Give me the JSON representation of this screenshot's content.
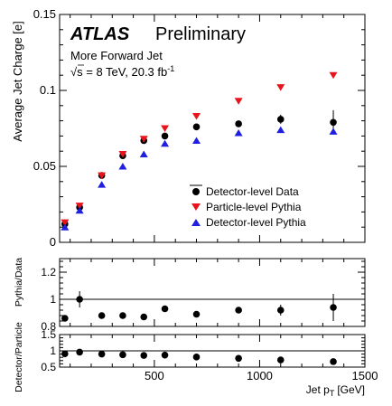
{
  "chart_data": [
    {
      "type": "scatter",
      "experiment": "ATLAS",
      "status": "Preliminary",
      "subtitle": "More Forward Jet",
      "energy_label": "√s = 8 TeV, 20.3 fb",
      "lumi_exp": "-1",
      "ylabel": "Average Jet Charge [e]",
      "xlim": [
        50,
        1500
      ],
      "ylim": [
        0,
        0.15
      ],
      "yticks": [
        0,
        0.05,
        0.1,
        0.15
      ],
      "ytick_labels": [
        "0",
        "0.05",
        "0.1",
        "0.15"
      ],
      "x": [
        75,
        145,
        250,
        350,
        450,
        550,
        700,
        900,
        1100,
        1350
      ],
      "series": [
        {
          "name": "Detector-level Data",
          "marker": "circle",
          "color": "#000000",
          "values": [
            0.012,
            0.023,
            0.044,
            0.057,
            0.067,
            0.07,
            0.076,
            0.078,
            0.081,
            0.079
          ],
          "errors": [
            0.003,
            0.002,
            0.002,
            0.002,
            0.002,
            0.002,
            0.002,
            0.002,
            0.003,
            0.008
          ]
        },
        {
          "name": "Particle-level Pythia",
          "marker": "triangle-down",
          "color": "#e8141c",
          "values": [
            0.013,
            0.024,
            0.044,
            0.058,
            0.068,
            0.075,
            0.083,
            0.093,
            0.102,
            0.11
          ]
        },
        {
          "name": "Detector-level Pythia",
          "marker": "triangle-up",
          "color": "#1f1fe0",
          "values": [
            0.01,
            0.021,
            0.038,
            0.05,
            0.058,
            0.065,
            0.067,
            0.072,
            0.074,
            0.073
          ]
        }
      ],
      "legend_position": "bottom-right"
    },
    {
      "type": "scatter",
      "ylabel": "Pythia/Data",
      "xlim": [
        50,
        1500
      ],
      "ylim": [
        0.8,
        1.3
      ],
      "yticks": [
        0.8,
        1.0,
        1.2
      ],
      "ytick_labels": [
        "0.8",
        "1",
        "1.2"
      ],
      "reference_line": 1,
      "x": [
        75,
        145,
        250,
        350,
        450,
        550,
        700,
        900,
        1100,
        1350
      ],
      "values": [
        0.86,
        1.0,
        0.88,
        0.88,
        0.87,
        0.93,
        0.89,
        0.92,
        0.92,
        0.94
      ],
      "errors": [
        0,
        0.06,
        0,
        0,
        0,
        0,
        0,
        0,
        0.04,
        0.1
      ]
    },
    {
      "type": "scatter",
      "xlabel": "Jet p",
      "xlabel_sub": "T",
      "xlabel_unit": "[GeV]",
      "ylabel": "Detector/Particle",
      "xlim": [
        50,
        1500
      ],
      "ylim": [
        0.5,
        1.5
      ],
      "xticks": [
        500,
        1000,
        1500
      ],
      "xtick_labels": [
        "500",
        "1000",
        "1500"
      ],
      "yticks": [
        0.5,
        1,
        1.5
      ],
      "ytick_labels": [
        "0.5",
        "1",
        "1.5"
      ],
      "reference_line": 1,
      "x": [
        75,
        145,
        250,
        350,
        450,
        550,
        700,
        900,
        1100,
        1350
      ],
      "values": [
        0.91,
        0.96,
        0.9,
        0.88,
        0.86,
        0.87,
        0.81,
        0.77,
        0.72,
        0.67
      ]
    }
  ]
}
